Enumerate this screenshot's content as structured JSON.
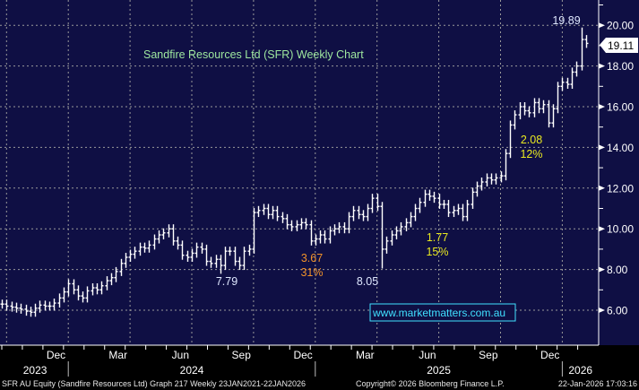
{
  "chart_data": {
    "type": "ohlc",
    "title": "Sandfire Resources Ltd (SFR) Weekly Chart",
    "ylim": [
      4.2,
      21.2
    ],
    "y_ticks": [
      "6.00",
      "8.00",
      "10.00",
      "12.00",
      "14.00",
      "16.00",
      "18.00",
      "20.00"
    ],
    "y_tick_values": [
      6,
      8,
      10,
      12,
      14,
      16,
      18,
      20
    ],
    "grid": true,
    "last_price": "19.11",
    "month_labels": [
      "Dec",
      "Mar",
      "Jun",
      "Sep",
      "Dec",
      "Mar",
      "Jun",
      "Sep",
      "Dec"
    ],
    "month_week_index": [
      14,
      27,
      40,
      53,
      66,
      79,
      92,
      105,
      118
    ],
    "year_labels": [
      "2023",
      "2024",
      "2025",
      "2026"
    ],
    "year_week_index": [
      0,
      14,
      66,
      118
    ],
    "weekly_close": [
      6.3,
      6.2,
      6.15,
      6.1,
      6.05,
      5.95,
      5.9,
      6.1,
      6.25,
      6.2,
      6.2,
      6.35,
      6.6,
      6.9,
      7.3,
      7.0,
      6.7,
      6.6,
      6.95,
      7.1,
      7.0,
      7.2,
      7.45,
      7.6,
      7.9,
      8.3,
      8.6,
      8.75,
      8.9,
      9.1,
      9.05,
      9.2,
      9.5,
      9.7,
      9.8,
      10.0,
      9.4,
      9.2,
      8.7,
      8.6,
      8.8,
      9.1,
      9.0,
      8.4,
      8.3,
      8.5,
      8.2,
      8.9,
      8.9,
      8.4,
      8.2,
      8.9,
      9.0,
      10.8,
      10.9,
      11.0,
      10.7,
      10.9,
      10.6,
      10.5,
      10.2,
      10.1,
      10.2,
      10.3,
      10.2,
      9.4,
      9.5,
      9.7,
      9.5,
      9.9,
      10.0,
      10.1,
      10.0,
      10.6,
      10.9,
      10.7,
      10.6,
      11.0,
      11.5,
      11.1,
      9.0,
      9.4,
      9.7,
      9.9,
      10.1,
      10.3,
      10.6,
      11.0,
      11.3,
      11.7,
      11.6,
      11.5,
      11.2,
      11.2,
      10.8,
      10.9,
      11.0,
      10.6,
      11.2,
      11.8,
      12.1,
      12.3,
      12.5,
      12.4,
      12.5,
      12.6,
      13.7,
      15.1,
      15.6,
      16.0,
      15.8,
      15.7,
      16.2,
      15.9,
      16.1,
      15.2,
      15.9,
      17.0,
      17.2,
      17.1,
      17.7,
      18.0,
      19.3,
      19.11
    ],
    "annotations": [
      {
        "week": 122,
        "text": "19.89",
        "color": "#dfe8ff"
      },
      {
        "week": 110,
        "text": "2.08",
        "text2": "12%",
        "color": "#e8e820"
      },
      {
        "week": 90,
        "text": "1.77",
        "text2": "15%",
        "color": "#e8e820"
      },
      {
        "week": 65,
        "text": "3.67",
        "text2": "31%",
        "color": "#f0922a"
      },
      {
        "week": 79,
        "text": "8.05",
        "color": "#dfe8ff"
      },
      {
        "week": 47,
        "text": "7.79",
        "color": "#dfe8ff"
      }
    ]
  },
  "watermark": "www.marketmatters.com.au",
  "footer": {
    "left": "SFR AU Equity (Sandfire Resources Ltd) Graph 217 Weekly 23JAN2021-22JAN2026",
    "center": "Copyright© 2026 Bloomberg Finance L.P.",
    "right": "22-Jan-2026 17:03:16"
  },
  "colors": {
    "plot_bg": "#0f0f44",
    "bars": "#ffffff",
    "title": "#9fe89f",
    "watermark": "#40e0ff"
  }
}
